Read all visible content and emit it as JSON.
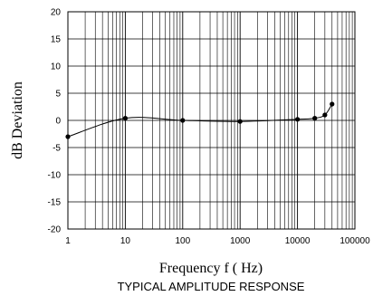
{
  "chart_data": {
    "type": "line",
    "title": "",
    "caption": "TYPICAL AMPLITUDE RESPONSE",
    "xlabel": "Frequency f ( Hz)",
    "ylabel": "dB Deviation",
    "x_scale": "log",
    "xlim": [
      1,
      100000
    ],
    "ylim": [
      -20,
      20
    ],
    "grid": true,
    "x_ticks": [
      "1",
      "10",
      "100",
      "1000",
      "10000",
      "100000"
    ],
    "y_ticks": [
      "20",
      "15",
      "10",
      "5",
      "0",
      "-5",
      "-10",
      "-15",
      "-20"
    ],
    "series": [
      {
        "points": [
          {
            "x": 1,
            "y": -3
          },
          {
            "x": 10,
            "y": 0.4
          },
          {
            "x": 100,
            "y": 0
          },
          {
            "x": 1000,
            "y": -0.2
          },
          {
            "x": 10000,
            "y": 0.2
          },
          {
            "x": 20000,
            "y": 0.4
          },
          {
            "x": 30000,
            "y": 1
          },
          {
            "x": 40000,
            "y": 3
          }
        ]
      }
    ],
    "line_color": "#000000",
    "grid_color": "#000000"
  }
}
